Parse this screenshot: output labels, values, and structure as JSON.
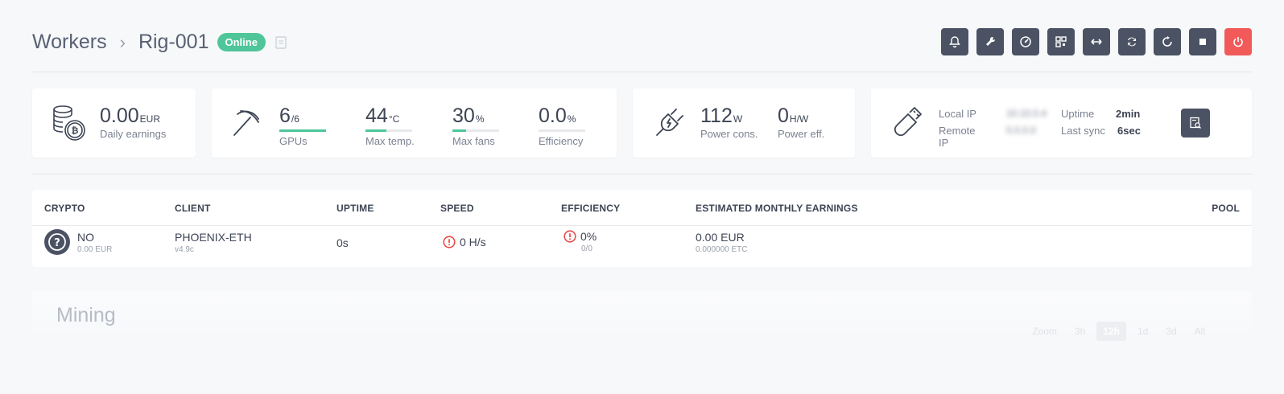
{
  "header": {
    "breadcrumb_root": "Workers",
    "breadcrumb_sep": "›",
    "rig_name": "Rig-001",
    "status": "Online"
  },
  "actions": [
    {
      "name": "bell-icon"
    },
    {
      "name": "wrench-icon"
    },
    {
      "name": "gauge-icon"
    },
    {
      "name": "qr-icon"
    },
    {
      "name": "arrows-horizontal-icon"
    },
    {
      "name": "sync-icon"
    },
    {
      "name": "restart-icon"
    },
    {
      "name": "stop-icon"
    },
    {
      "name": "power-icon"
    }
  ],
  "earnings": {
    "value": "0.00",
    "unit": "EUR",
    "label": "Daily earnings"
  },
  "gpus": {
    "value": "6",
    "unit": "/6",
    "label": "GPUs",
    "fill": 1.0
  },
  "temp": {
    "value": "44",
    "unit": "°C",
    "label": "Max temp.",
    "fill": 0.44
  },
  "fans": {
    "value": "30",
    "unit": "%",
    "label": "Max fans",
    "fill": 0.3
  },
  "efficiency": {
    "value": "0.0",
    "unit": "%",
    "label": "Efficiency",
    "fill": 0.0
  },
  "power": {
    "value": "112",
    "unit": "W",
    "label": "Power cons."
  },
  "power_eff": {
    "value": "0",
    "unit": "H/W",
    "label": "Power eff."
  },
  "network": {
    "local_ip_label": "Local IP",
    "remote_ip_label": "Remote IP",
    "local_ip": "10.10.0.4",
    "remote_ip": "0.0.0.0",
    "uptime_label": "Uptime",
    "uptime": "2min",
    "sync_label": "Last sync",
    "sync": "6sec"
  },
  "table": {
    "headers": {
      "crypto": "CRYPTO",
      "client": "CLIENT",
      "uptime": "UPTIME",
      "speed": "SPEED",
      "efficiency": "EFFICIENCY",
      "earnings": "ESTIMATED MONTHLY EARNINGS",
      "pool": "POOL"
    },
    "row": {
      "crypto": "NO",
      "crypto_sub": "0.00 EUR",
      "client": "PHOENIX-ETH",
      "client_sub": "v4.9c",
      "uptime": "0s",
      "speed": "0 H/s",
      "efficiency": "0%",
      "efficiency_sub": "0/0",
      "earnings": "0.00 EUR",
      "earnings_sub": "0.000000 ETC"
    }
  },
  "mining": {
    "title": "Mining",
    "zoom_label": "Zoom",
    "zoom_options": [
      "3h",
      "12h",
      "1d",
      "3d",
      "All"
    ],
    "zoom_selected": "12h"
  },
  "colors": {
    "accent": "#4fc69a",
    "danger": "#f25a5a",
    "button": "#4b5263",
    "warn": "#e84c4c"
  }
}
